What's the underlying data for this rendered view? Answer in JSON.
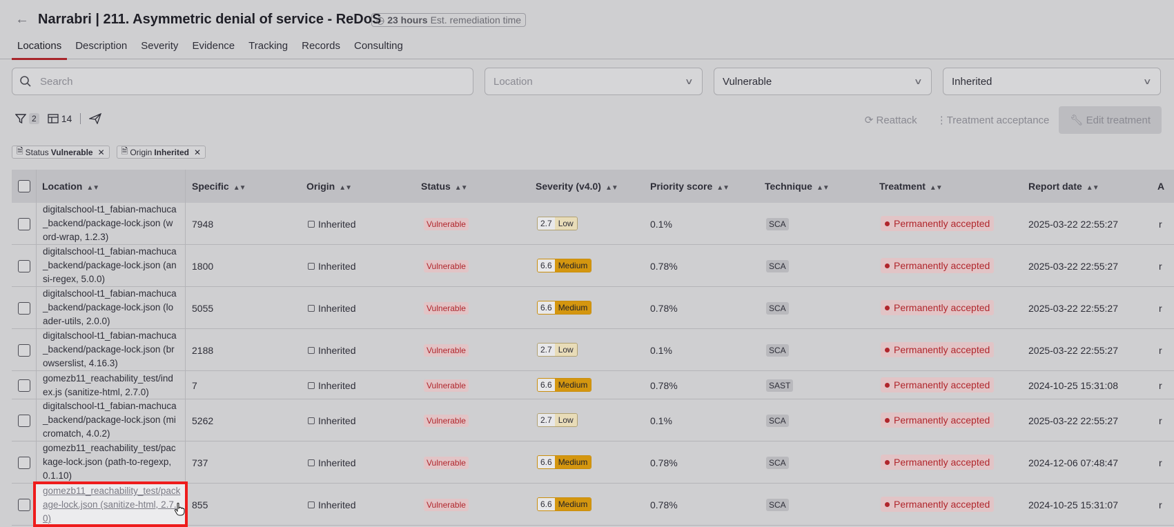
{
  "header": {
    "back_icon": "arrow-left-icon",
    "title": "Narrabri | 211. Asymmetric denial of service - ReDoS",
    "remediation_hours": "23 hours",
    "remediation_label": "Est. remediation time"
  },
  "tabs": [
    "Locations",
    "Description",
    "Severity",
    "Evidence",
    "Tracking",
    "Records",
    "Consulting"
  ],
  "filters": {
    "search_placeholder": "Search",
    "location_placeholder": "Location",
    "status_value": "Vulnerable",
    "origin_value": "Inherited"
  },
  "toolbar": {
    "filter_count": "2",
    "columns_count": "14",
    "reattack_label": "Reattack",
    "treatment_acceptance_label": "Treatment acceptance",
    "edit_treatment_label": "Edit treatment"
  },
  "chips": [
    {
      "key": "Status",
      "value": "Vulnerable"
    },
    {
      "key": "Origin",
      "value": "Inherited"
    }
  ],
  "columns": [
    "Location",
    "Specific",
    "Origin",
    "Status",
    "Severity (v4.0)",
    "Priority score",
    "Technique",
    "Treatment",
    "Report date",
    "A"
  ],
  "rows": [
    {
      "location": "digitalschool-t1_fabian-machuca_backend/package-lock.json (word-wrap, 1.2.3)",
      "specific": "7948",
      "origin": "Inherited",
      "status": "Vulnerable",
      "score": "2.7",
      "severity": "Low",
      "priority": "0.1%",
      "technique": "SCA",
      "treatment": "Permanently accepted",
      "date": "2025-03-22 22:55:27",
      "extra": "r"
    },
    {
      "location": "digitalschool-t1_fabian-machuca_backend/package-lock.json (ansi-regex, 5.0.0)",
      "specific": "1800",
      "origin": "Inherited",
      "status": "Vulnerable",
      "score": "6.6",
      "severity": "Medium",
      "priority": "0.78%",
      "technique": "SCA",
      "treatment": "Permanently accepted",
      "date": "2025-03-22 22:55:27",
      "extra": "r"
    },
    {
      "location": "digitalschool-t1_fabian-machuca_backend/package-lock.json (loader-utils, 2.0.0)",
      "specific": "5055",
      "origin": "Inherited",
      "status": "Vulnerable",
      "score": "6.6",
      "severity": "Medium",
      "priority": "0.78%",
      "technique": "SCA",
      "treatment": "Permanently accepted",
      "date": "2025-03-22 22:55:27",
      "extra": "r"
    },
    {
      "location": "digitalschool-t1_fabian-machuca_backend/package-lock.json (browserslist, 4.16.3)",
      "specific": "2188",
      "origin": "Inherited",
      "status": "Vulnerable",
      "score": "2.7",
      "severity": "Low",
      "priority": "0.1%",
      "technique": "SCA",
      "treatment": "Permanently accepted",
      "date": "2025-03-22 22:55:27",
      "extra": "r"
    },
    {
      "location": "gomezb11_reachability_test/index.js (sanitize-html, 2.7.0)",
      "specific": "7",
      "origin": "Inherited",
      "status": "Vulnerable",
      "score": "6.6",
      "severity": "Medium",
      "priority": "0.78%",
      "technique": "SAST",
      "treatment": "Permanently accepted",
      "date": "2024-10-25 15:31:08",
      "extra": "r"
    },
    {
      "location": "digitalschool-t1_fabian-machuca_backend/package-lock.json (micromatch, 4.0.2)",
      "specific": "5262",
      "origin": "Inherited",
      "status": "Vulnerable",
      "score": "2.7",
      "severity": "Low",
      "priority": "0.1%",
      "technique": "SCA",
      "treatment": "Permanently accepted",
      "date": "2025-03-22 22:55:27",
      "extra": "r"
    },
    {
      "location": "gomezb11_reachability_test/package-lock.json (path-to-regexp, 0.1.10)",
      "specific": "737",
      "origin": "Inherited",
      "status": "Vulnerable",
      "score": "6.6",
      "severity": "Medium",
      "priority": "0.78%",
      "technique": "SCA",
      "treatment": "Permanently accepted",
      "date": "2024-12-06 07:48:47",
      "extra": "r"
    },
    {
      "location": "gomezb11_reachability_test/package-lock.json (sanitize-html, 2.7.0)",
      "specific": "855",
      "origin": "Inherited",
      "status": "Vulnerable",
      "score": "6.6",
      "severity": "Medium",
      "priority": "0.78%",
      "technique": "SCA",
      "treatment": "Permanently accepted",
      "date": "2024-10-25 15:31:07",
      "extra": "r"
    }
  ]
}
